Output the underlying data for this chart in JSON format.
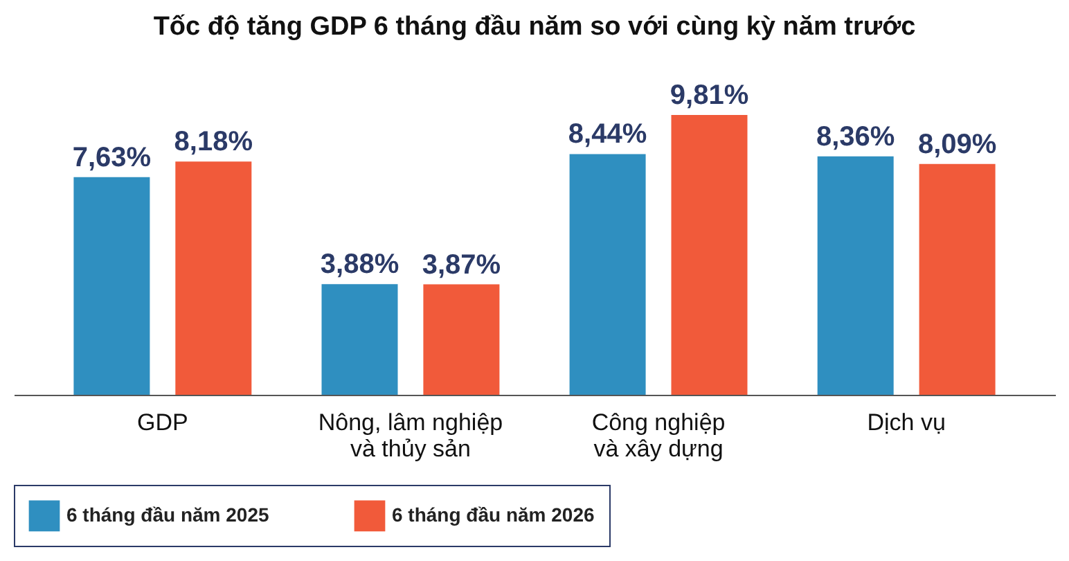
{
  "chart_data": {
    "type": "bar",
    "title": "Tốc độ tăng GDP 6 tháng đầu năm so với cùng kỳ năm trước",
    "categories": [
      "GDP",
      "Nông, lâm nghiệp và thủy sản",
      "Công nghiệp và xây dựng",
      "Dịch vụ"
    ],
    "series": [
      {
        "name": "6 tháng đầu năm 2025",
        "color": "#2f8fc0",
        "values": [
          7.63,
          3.88,
          8.44,
          8.36
        ],
        "value_labels": [
          "7,63%",
          "3,88%",
          "8,44%",
          "8,36%"
        ]
      },
      {
        "name": "6 tháng đầu năm 2026",
        "color": "#f15a3a",
        "values": [
          8.18,
          3.87,
          9.81,
          8.09
        ],
        "value_labels": [
          "8,18%",
          "3,87%",
          "9,81%",
          "8,09%"
        ]
      }
    ],
    "legend": "bottom",
    "grid": false
  }
}
